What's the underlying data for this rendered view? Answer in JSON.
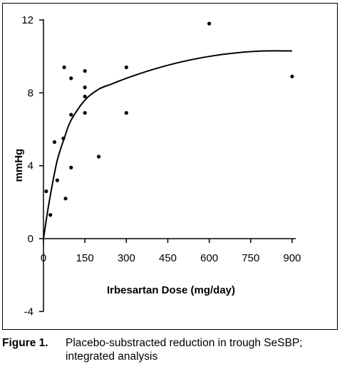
{
  "chart_data": {
    "type": "scatter",
    "xlabel": "Irbesartan Dose (mg/day)",
    "ylabel": "mmHg",
    "x_ticks": [
      0,
      150,
      300,
      450,
      600,
      750,
      900
    ],
    "y_ticks": [
      -4,
      0,
      4,
      8,
      12
    ],
    "xlim": [
      0,
      900
    ],
    "ylim": [
      -4,
      12
    ],
    "points": [
      {
        "x": 10,
        "y": 2.6
      },
      {
        "x": 25,
        "y": 1.3
      },
      {
        "x": 40,
        "y": 5.3
      },
      {
        "x": 50,
        "y": 3.2
      },
      {
        "x": 72,
        "y": 5.5
      },
      {
        "x": 75,
        "y": 9.4
      },
      {
        "x": 80,
        "y": 2.2
      },
      {
        "x": 100,
        "y": 3.9
      },
      {
        "x": 100,
        "y": 6.8
      },
      {
        "x": 100,
        "y": 8.8
      },
      {
        "x": 150,
        "y": 6.9
      },
      {
        "x": 150,
        "y": 7.8
      },
      {
        "x": 150,
        "y": 8.3
      },
      {
        "x": 150,
        "y": 9.2
      },
      {
        "x": 200,
        "y": 4.5
      },
      {
        "x": 300,
        "y": 6.9
      },
      {
        "x": 300,
        "y": 9.4
      },
      {
        "x": 600,
        "y": 11.8
      },
      {
        "x": 900,
        "y": 8.9
      }
    ],
    "fit_curve": [
      {
        "x": 0,
        "y": 0
      },
      {
        "x": 15,
        "y": 1.5
      },
      {
        "x": 30,
        "y": 2.8
      },
      {
        "x": 50,
        "y": 4.3
      },
      {
        "x": 75,
        "y": 5.5
      },
      {
        "x": 100,
        "y": 6.5
      },
      {
        "x": 150,
        "y": 7.6
      },
      {
        "x": 200,
        "y": 8.2
      },
      {
        "x": 250,
        "y": 8.5
      },
      {
        "x": 300,
        "y": 8.8
      },
      {
        "x": 400,
        "y": 9.3
      },
      {
        "x": 500,
        "y": 9.7
      },
      {
        "x": 600,
        "y": 10.0
      },
      {
        "x": 700,
        "y": 10.2
      },
      {
        "x": 800,
        "y": 10.3
      },
      {
        "x": 900,
        "y": 10.3
      }
    ]
  },
  "caption": {
    "label": "Figure 1.",
    "text": "Placebo-substracted reduction in trough SeSBP; integrated analysis"
  }
}
